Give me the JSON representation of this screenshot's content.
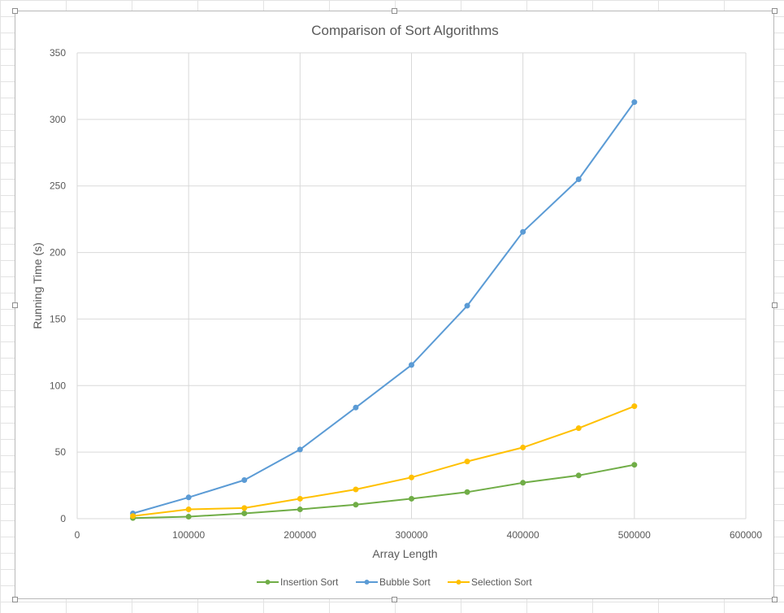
{
  "chart_data": {
    "type": "line",
    "title": "Comparison of Sort Algorithms",
    "xlabel": "Array Length",
    "ylabel": "Running Time (s)",
    "xlim": [
      0,
      600000
    ],
    "ylim": [
      0,
      350
    ],
    "x_ticks": [
      "0",
      "100000",
      "200000",
      "300000",
      "400000",
      "500000",
      "600000"
    ],
    "y_ticks": [
      "0",
      "50",
      "100",
      "150",
      "200",
      "250",
      "300",
      "350"
    ],
    "grid": true,
    "legend_position": "bottom",
    "x": [
      50000,
      100000,
      150000,
      200000,
      250000,
      300000,
      350000,
      400000,
      450000,
      500000
    ],
    "series": [
      {
        "name": "Insertion Sort",
        "color": "#70ad47",
        "values": [
          0.5,
          1.5,
          4,
          7,
          10.5,
          15,
          20,
          27,
          32.5,
          40.5
        ]
      },
      {
        "name": "Bubble Sort",
        "color": "#5b9bd5",
        "values": [
          4,
          16,
          29,
          52,
          83.5,
          115.5,
          160,
          215.5,
          255,
          313
        ]
      },
      {
        "name": "Selection Sort",
        "color": "#ffc000",
        "values": [
          2,
          7,
          8,
          15,
          22,
          31,
          43,
          53.5,
          68,
          84.5
        ]
      }
    ]
  }
}
